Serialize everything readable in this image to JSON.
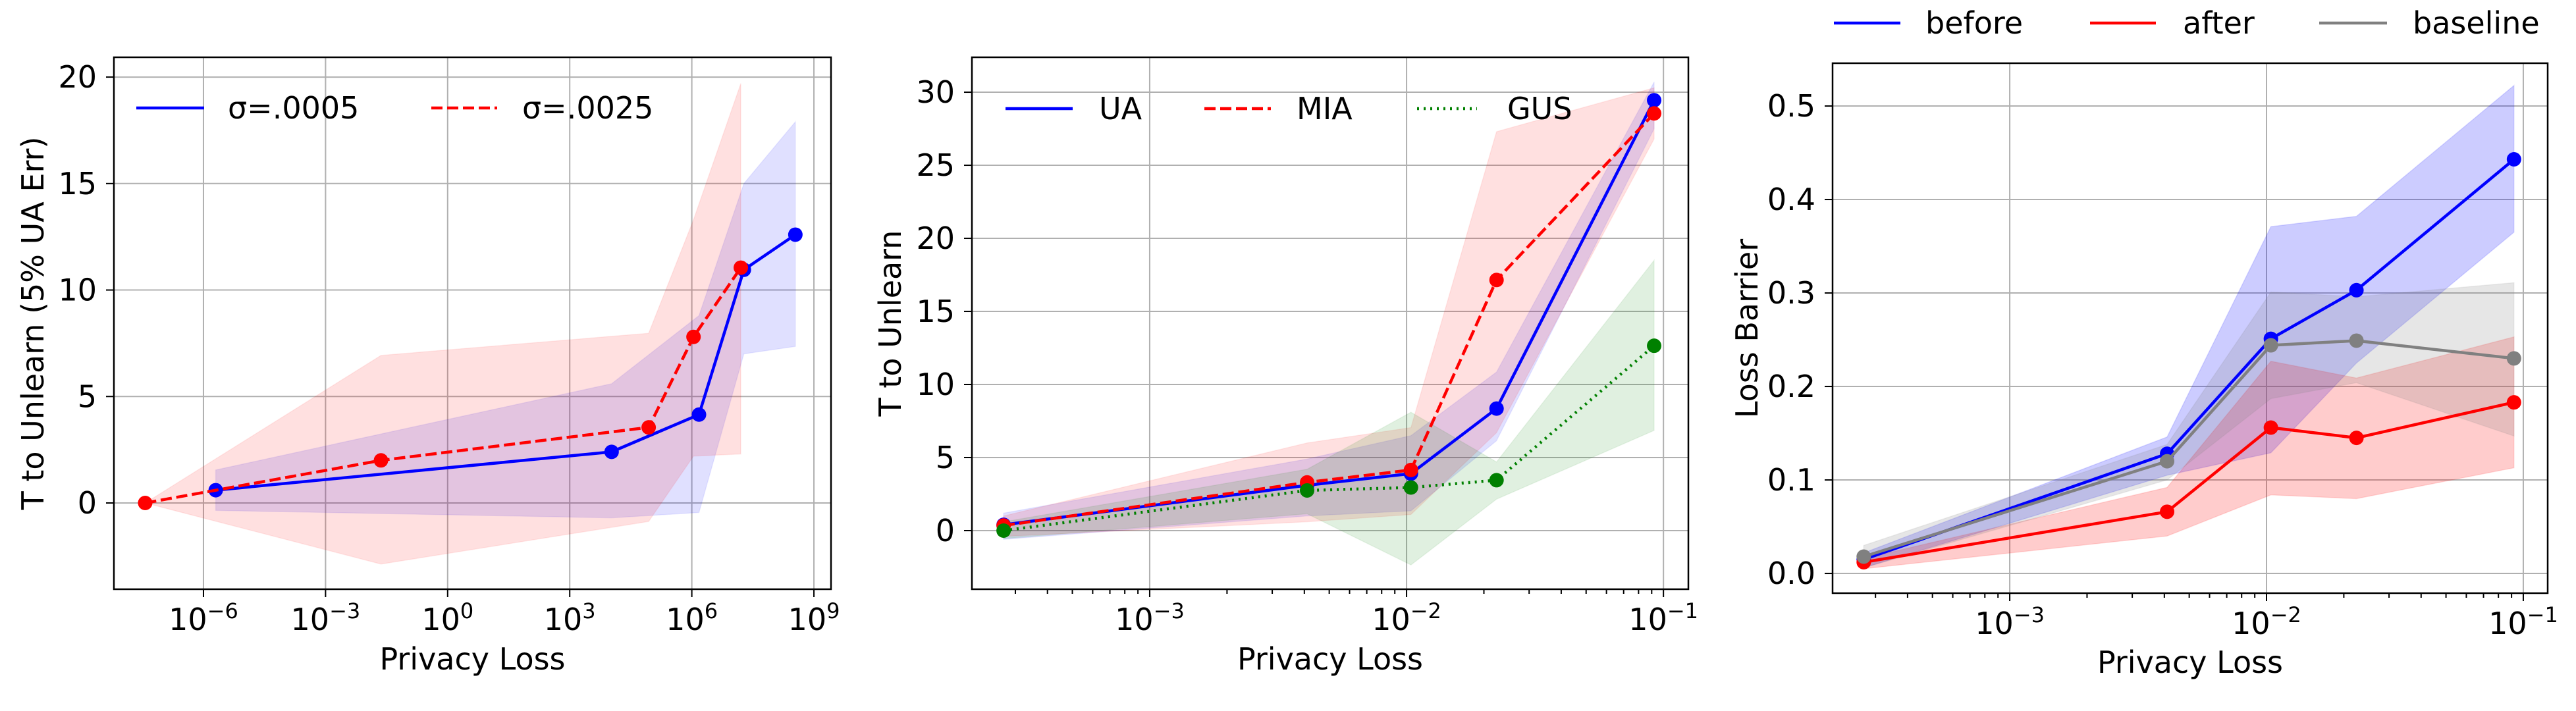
{
  "chart_data": [
    {
      "type": "line",
      "xscale": "log",
      "xlabel": "Privacy Loss",
      "ylabel": "T to Unlearn (5% UA Err)",
      "xlim_log10": [
        -8.2,
        9.42
      ],
      "ylim": [
        -4.05,
        20.93
      ],
      "grid": true,
      "minor_ticks": false,
      "legend": {
        "placement": "upper-left",
        "columns": 2
      },
      "xticks": [
        {
          "value": 1e-06,
          "base": "10",
          "exp": "−6"
        },
        {
          "value": 0.001,
          "base": "10",
          "exp": "−3"
        },
        {
          "value": 1,
          "base": "10",
          "exp": "0"
        },
        {
          "value": 1000.0,
          "base": "10",
          "exp": "3"
        },
        {
          "value": 1000000.0,
          "base": "10",
          "exp": "6"
        },
        {
          "value": 1000000000.0,
          "base": "10",
          "exp": "9"
        }
      ],
      "yticks": [
        {
          "value": 0,
          "label": "0"
        },
        {
          "value": 5,
          "label": "5"
        },
        {
          "value": 10,
          "label": "10"
        },
        {
          "value": 15,
          "label": "15"
        },
        {
          "value": 20,
          "label": "20"
        }
      ],
      "series": [
        {
          "name": "σ=.0005",
          "color": "#0000ff",
          "style": "solid",
          "x": [
            2e-06,
            10700.0,
            1500000.0,
            19000000.0,
            350000000.0
          ],
          "y": [
            0.6,
            2.4,
            4.15,
            10.95,
            12.6
          ],
          "band_lower": [
            -0.35,
            -0.7,
            -0.45,
            7.0,
            7.35
          ],
          "band_upper": [
            1.55,
            5.6,
            8.8,
            15.0,
            17.9
          ]
        },
        {
          "name": "σ=.0025",
          "color": "#ff0000",
          "style": "dashed",
          "x": [
            3.7e-08,
            0.023,
            87000.0,
            1100000.0,
            16000000.0
          ],
          "y": [
            0.0,
            2.0,
            3.55,
            7.8,
            11.05
          ],
          "band_lower": [
            0.0,
            -2.87,
            -0.87,
            2.2,
            2.3
          ],
          "band_upper": [
            0.0,
            6.93,
            7.97,
            13.3,
            19.7
          ]
        }
      ]
    },
    {
      "type": "line",
      "xscale": "log",
      "xlabel": "Privacy Loss",
      "ylabel": "T to Unlearn",
      "xlim_log10": [
        -3.692,
        -0.903
      ],
      "ylim": [
        -4.01,
        32.39
      ],
      "grid": true,
      "minor_ticks": true,
      "legend": {
        "placement": "upper-left",
        "columns": 3
      },
      "xticks": [
        {
          "value": 0.001,
          "base": "10",
          "exp": "−3"
        },
        {
          "value": 0.01,
          "base": "10",
          "exp": "−2"
        },
        {
          "value": 0.1,
          "base": "10",
          "exp": "−1"
        }
      ],
      "yticks": [
        {
          "value": 0,
          "label": "0"
        },
        {
          "value": 5,
          "label": "5"
        },
        {
          "value": 10,
          "label": "10"
        },
        {
          "value": 15,
          "label": "15"
        },
        {
          "value": 20,
          "label": "20"
        },
        {
          "value": 25,
          "label": "25"
        },
        {
          "value": 30,
          "label": "30"
        }
      ],
      "series": [
        {
          "name": "UA",
          "color": "#0000ff",
          "style": "solid",
          "x": [
            0.00027,
            0.0041,
            0.0104,
            0.0224,
            0.092
          ],
          "y": [
            0.4,
            3.1,
            3.9,
            8.35,
            29.45
          ],
          "band_lower": [
            -0.6,
            1.0,
            1.35,
            6.15,
            27.5
          ],
          "band_upper": [
            1.2,
            4.9,
            6.5,
            10.85,
            30.7
          ]
        },
        {
          "name": "MIA",
          "color": "#ff0000",
          "style": "dashed",
          "x": [
            0.00027,
            0.0041,
            0.0104,
            0.0224,
            0.092
          ],
          "y": [
            0.35,
            3.3,
            4.15,
            17.15,
            28.55
          ],
          "band_lower": [
            -0.4,
            0.6,
            1.1,
            6.7,
            26.8
          ],
          "band_upper": [
            1.0,
            6.0,
            7.05,
            27.3,
            30.3
          ]
        },
        {
          "name": "GUS",
          "color": "#008000",
          "style": "dotted",
          "x": [
            0.00027,
            0.0041,
            0.0104,
            0.0224,
            0.092
          ],
          "y": [
            0.0,
            2.75,
            2.95,
            3.45,
            12.65
          ],
          "band_lower": [
            -0.55,
            1.15,
            -2.35,
            2.15,
            6.85
          ],
          "band_upper": [
            0.6,
            4.2,
            8.1,
            4.7,
            18.5
          ]
        }
      ]
    },
    {
      "type": "line",
      "xscale": "log",
      "xlabel": "Privacy Loss",
      "ylabel": "Loss Barrier",
      "xlim_log10": [
        -3.69,
        -0.905
      ],
      "ylim": [
        -0.0211,
        0.5458
      ],
      "grid": true,
      "minor_ticks": true,
      "legend": {
        "placement": "above-top-right",
        "columns": 3
      },
      "xticks": [
        {
          "value": 0.001,
          "base": "10",
          "exp": "−3"
        },
        {
          "value": 0.01,
          "base": "10",
          "exp": "−2"
        },
        {
          "value": 0.1,
          "base": "10",
          "exp": "−1"
        }
      ],
      "yticks": [
        {
          "value": 0.0,
          "label": "0.0"
        },
        {
          "value": 0.1,
          "label": "0.1"
        },
        {
          "value": 0.2,
          "label": "0.2"
        },
        {
          "value": 0.3,
          "label": "0.3"
        },
        {
          "value": 0.4,
          "label": "0.4"
        },
        {
          "value": 0.5,
          "label": "0.5"
        }
      ],
      "series": [
        {
          "name": "before",
          "color": "#0000ff",
          "style": "solid",
          "x": [
            0.00027,
            0.0041,
            0.0104,
            0.0224,
            0.092
          ],
          "y": [
            0.015,
            0.128,
            0.251,
            0.303,
            0.443
          ],
          "band_lower": [
            0.006,
            0.105,
            0.129,
            0.225,
            0.365
          ],
          "band_upper": [
            0.022,
            0.146,
            0.371,
            0.382,
            0.522
          ]
        },
        {
          "name": "after",
          "color": "#ff0000",
          "style": "solid",
          "x": [
            0.00027,
            0.0041,
            0.0104,
            0.0224,
            0.092
          ],
          "y": [
            0.012,
            0.066,
            0.156,
            0.145,
            0.183
          ],
          "band_lower": [
            0.005,
            0.04,
            0.084,
            0.08,
            0.113
          ],
          "band_upper": [
            0.016,
            0.092,
            0.227,
            0.209,
            0.253
          ]
        },
        {
          "name": "baseline",
          "color": "#808080",
          "style": "solid",
          "x": [
            0.00027,
            0.0041,
            0.0104,
            0.0224,
            0.092
          ],
          "y": [
            0.018,
            0.12,
            0.244,
            0.249,
            0.23
          ],
          "band_lower": [
            0.006,
            0.1,
            0.187,
            0.204,
            0.147
          ],
          "band_upper": [
            0.03,
            0.138,
            0.301,
            0.296,
            0.311
          ]
        }
      ]
    }
  ]
}
